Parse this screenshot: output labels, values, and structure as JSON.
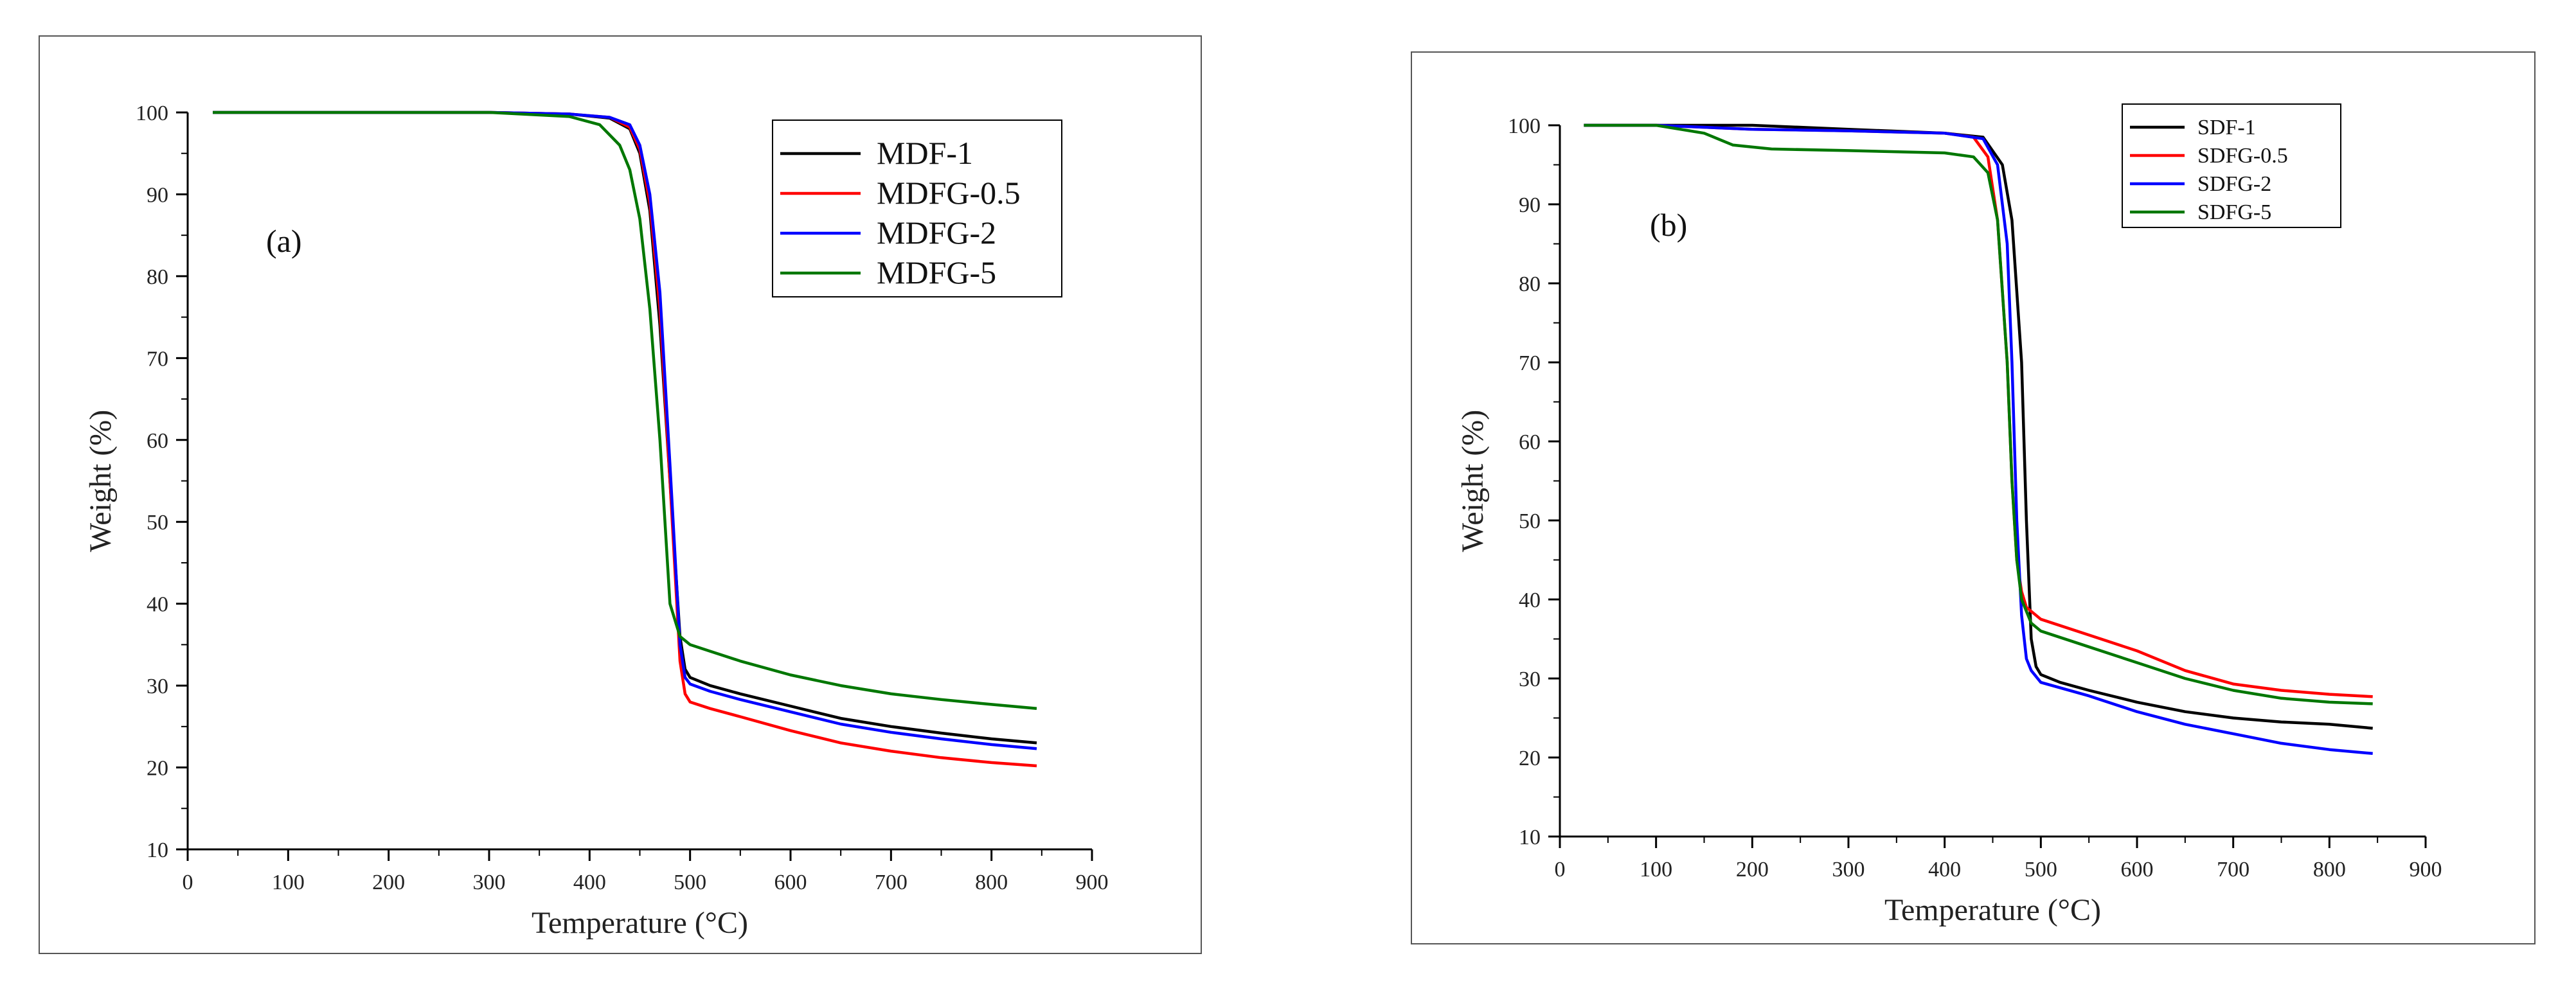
{
  "chart_data": [
    {
      "panel": "(a)",
      "type": "line",
      "xlabel": "Temperature (°C)",
      "ylabel": "Weight (%)",
      "xlim": [
        0,
        900
      ],
      "ylim": [
        10,
        100
      ],
      "xticks": [
        0,
        100,
        200,
        300,
        400,
        500,
        600,
        700,
        800,
        900
      ],
      "yticks": [
        10,
        20,
        30,
        40,
        50,
        60,
        70,
        80,
        90,
        100
      ],
      "legend_position": "top-right",
      "series": [
        {
          "name": "MDF-1",
          "color": "#000000",
          "x": [
            25,
            100,
            200,
            300,
            380,
            420,
            440,
            450,
            460,
            470,
            480,
            490,
            495,
            500,
            520,
            550,
            600,
            650,
            700,
            750,
            800,
            845
          ],
          "y": [
            100,
            100,
            100,
            100,
            99.8,
            99.3,
            98.0,
            95.0,
            88.0,
            74.0,
            55.0,
            36.0,
            32.0,
            31.0,
            30.0,
            29.0,
            27.5,
            26.0,
            25.0,
            24.2,
            23.5,
            23.0
          ]
        },
        {
          "name": "MDFG-0.5",
          "color": "#ff0000",
          "x": [
            25,
            100,
            200,
            300,
            380,
            420,
            440,
            450,
            460,
            470,
            480,
            490,
            495,
            500,
            520,
            550,
            600,
            650,
            700,
            750,
            800,
            845
          ],
          "y": [
            100,
            100,
            100,
            100,
            99.8,
            99.4,
            98.2,
            95.5,
            89.0,
            76.0,
            55.0,
            33.0,
            29.0,
            28.0,
            27.2,
            26.2,
            24.5,
            23.0,
            22.0,
            21.2,
            20.6,
            20.2
          ]
        },
        {
          "name": "MDFG-2",
          "color": "#0000ff",
          "x": [
            25,
            100,
            200,
            300,
            380,
            420,
            440,
            450,
            460,
            470,
            480,
            490,
            495,
            500,
            520,
            550,
            600,
            650,
            700,
            750,
            800,
            845
          ],
          "y": [
            100,
            100,
            100,
            100,
            99.8,
            99.4,
            98.5,
            96.0,
            90.0,
            78.0,
            57.0,
            35.0,
            31.0,
            30.2,
            29.3,
            28.3,
            26.8,
            25.3,
            24.3,
            23.5,
            22.8,
            22.3
          ]
        },
        {
          "name": "MDFG-5",
          "color": "#007700",
          "x": [
            25,
            100,
            200,
            300,
            380,
            410,
            430,
            440,
            450,
            460,
            470,
            480,
            490,
            500,
            520,
            550,
            600,
            650,
            700,
            750,
            800,
            845
          ],
          "y": [
            100,
            100,
            100,
            100,
            99.5,
            98.5,
            96.0,
            93.0,
            87.0,
            76.0,
            60.0,
            40.0,
            36.0,
            35.0,
            34.2,
            33.0,
            31.3,
            30.0,
            29.0,
            28.3,
            27.7,
            27.2
          ]
        }
      ]
    },
    {
      "panel": "(b)",
      "type": "line",
      "xlabel": "Temperature (°C)",
      "ylabel": "Weight (%)",
      "xlim": [
        0,
        900
      ],
      "ylim": [
        10,
        100
      ],
      "xticks": [
        0,
        100,
        200,
        300,
        400,
        500,
        600,
        700,
        800,
        900
      ],
      "yticks": [
        10,
        20,
        30,
        40,
        50,
        60,
        70,
        80,
        90,
        100
      ],
      "legend_position": "top-right",
      "series": [
        {
          "name": "SDF-1",
          "color": "#000000",
          "x": [
            25,
            100,
            200,
            300,
            400,
            440,
            460,
            470,
            480,
            485,
            490,
            495,
            500,
            520,
            550,
            600,
            650,
            700,
            750,
            800,
            845
          ],
          "y": [
            100,
            100,
            100,
            99.5,
            99.0,
            98.5,
            95.0,
            88.0,
            70.0,
            50.0,
            35.0,
            31.5,
            30.5,
            29.5,
            28.5,
            27.0,
            25.8,
            25.0,
            24.5,
            24.2,
            23.7
          ]
        },
        {
          "name": "SDFG-0.5",
          "color": "#ff0000",
          "x": [
            25,
            100,
            200,
            300,
            400,
            430,
            445,
            455,
            465,
            470,
            475,
            480,
            485,
            500,
            550,
            600,
            650,
            700,
            750,
            800,
            845
          ],
          "y": [
            100,
            100,
            99.5,
            99.3,
            99.0,
            98.5,
            96.0,
            88.0,
            70.0,
            55.0,
            45.0,
            41.0,
            39.0,
            37.5,
            35.5,
            33.5,
            31.0,
            29.3,
            28.5,
            28.0,
            27.7
          ]
        },
        {
          "name": "SDFG-2",
          "color": "#0000ff",
          "x": [
            25,
            100,
            200,
            300,
            400,
            440,
            455,
            465,
            470,
            475,
            480,
            485,
            490,
            500,
            550,
            600,
            650,
            700,
            750,
            800,
            845
          ],
          "y": [
            100,
            100,
            99.5,
            99.3,
            99.0,
            98.3,
            95.0,
            85.0,
            70.0,
            50.0,
            38.0,
            32.5,
            31.0,
            29.5,
            27.8,
            25.8,
            24.2,
            23.0,
            21.8,
            21.0,
            20.5
          ]
        },
        {
          "name": "SDFG-5",
          "color": "#007700",
          "x": [
            25,
            100,
            150,
            180,
            220,
            300,
            400,
            430,
            445,
            455,
            465,
            470,
            475,
            480,
            490,
            500,
            550,
            600,
            650,
            700,
            750,
            800,
            845
          ],
          "y": [
            100,
            100,
            99.0,
            97.5,
            97.0,
            96.8,
            96.5,
            96.0,
            94.0,
            88.0,
            70.0,
            55.0,
            45.0,
            40.0,
            37.0,
            36.0,
            34.0,
            32.0,
            30.0,
            28.5,
            27.5,
            27.0,
            26.8
          ]
        }
      ]
    }
  ]
}
